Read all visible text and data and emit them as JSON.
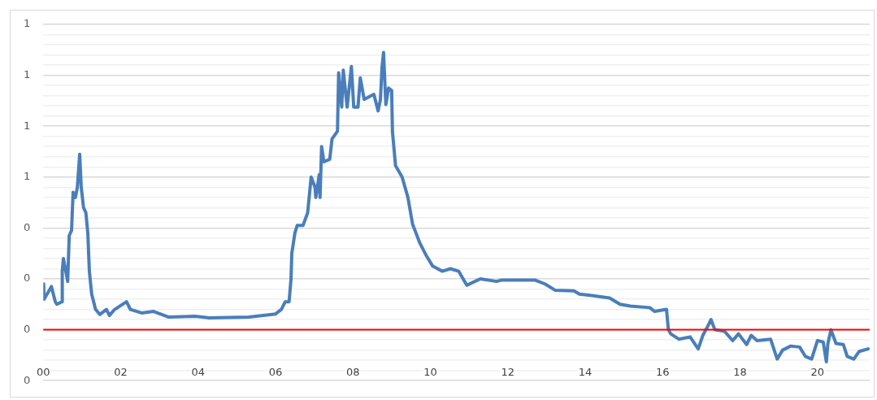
{
  "chart_data": {
    "type": "line",
    "grid": "y",
    "marker": "none",
    "line_style": "solid",
    "x": [
      0.01,
      0.02,
      0.21,
      0.31,
      0.35,
      0.48,
      0.49,
      0.52,
      0.63,
      0.67,
      0.73,
      0.77,
      0.83,
      0.88,
      0.94,
      0.98,
      1.04,
      1.1,
      1.15,
      1.19,
      1.25,
      1.35,
      1.46,
      1.63,
      1.71,
      1.83,
      2.15,
      2.25,
      2.54,
      2.85,
      3.23,
      3.92,
      4.27,
      5.31,
      6.0,
      6.15,
      6.25,
      6.35,
      6.4,
      6.42,
      6.5,
      6.56,
      6.71,
      6.83,
      6.92,
      7.02,
      7.04,
      7.13,
      7.15,
      7.19,
      7.25,
      7.4,
      7.46,
      7.6,
      7.63,
      7.71,
      7.75,
      7.85,
      7.96,
      8.02,
      8.13,
      8.19,
      8.29,
      8.54,
      8.65,
      8.71,
      8.75,
      8.79,
      8.85,
      8.92,
      9.0,
      9.02,
      9.1,
      9.27,
      9.42,
      9.54,
      9.73,
      9.9,
      10.06,
      10.31,
      10.52,
      10.73,
      10.94,
      11.29,
      11.71,
      11.83,
      12.71,
      12.96,
      13.23,
      13.71,
      13.85,
      14.13,
      14.63,
      14.9,
      15.17,
      15.67,
      15.79,
      16.1,
      16.15,
      16.21,
      16.42,
      16.71,
      16.92,
      17.04,
      17.15,
      17.25,
      17.35,
      17.6,
      17.81,
      17.96,
      18.17,
      18.29,
      18.44,
      18.79,
      18.96,
      19.1,
      19.31,
      19.54,
      19.69,
      19.85,
      20.0,
      20.15,
      20.23,
      20.27,
      20.35,
      20.48,
      20.67,
      20.77,
      20.94,
      21.08,
      21.31
    ],
    "series": [
      {
        "color": "#4a7ebb",
        "values": [
          0.18,
          0.12,
          0.17,
          0.11,
          0.1,
          0.11,
          0.23,
          0.28,
          0.19,
          0.37,
          0.39,
          0.54,
          0.52,
          0.56,
          0.69,
          0.56,
          0.48,
          0.46,
          0.38,
          0.23,
          0.14,
          0.08,
          0.06,
          0.08,
          0.056,
          0.078,
          0.11,
          0.08,
          0.066,
          0.072,
          0.05,
          0.053,
          0.047,
          0.05,
          0.062,
          0.08,
          0.11,
          0.11,
          0.2,
          0.3,
          0.38,
          0.41,
          0.41,
          0.46,
          0.6,
          0.56,
          0.52,
          0.61,
          0.52,
          0.72,
          0.66,
          0.67,
          0.75,
          0.78,
          1.01,
          0.875,
          1.02,
          0.875,
          1.035,
          0.875,
          0.875,
          0.99,
          0.905,
          0.925,
          0.86,
          0.905,
          1.03,
          1.09,
          0.885,
          0.95,
          0.94,
          0.78,
          0.645,
          0.6,
          0.52,
          0.415,
          0.34,
          0.29,
          0.25,
          0.23,
          0.24,
          0.23,
          0.175,
          0.2,
          0.19,
          0.195,
          0.195,
          0.18,
          0.155,
          0.153,
          0.14,
          0.135,
          0.125,
          0.1,
          0.093,
          0.087,
          0.072,
          0.08,
          0.0,
          -0.016,
          -0.037,
          -0.028,
          -0.075,
          -0.022,
          0.009,
          0.04,
          0.0,
          -0.006,
          -0.043,
          -0.016,
          -0.058,
          -0.022,
          -0.043,
          -0.037,
          -0.115,
          -0.08,
          -0.064,
          -0.068,
          -0.105,
          -0.115,
          -0.043,
          -0.048,
          -0.126,
          -0.054,
          0.0,
          -0.054,
          -0.058,
          -0.105,
          -0.115,
          -0.085,
          -0.075
        ]
      }
    ],
    "ref_lines": [
      {
        "axis": "y",
        "value": 0,
        "color": "#ff0000"
      }
    ],
    "xlim": [
      0,
      21.35
    ],
    "xticks": [
      {
        "value": 0,
        "label": "00"
      },
      {
        "value": 2,
        "label": "02"
      },
      {
        "value": 4,
        "label": "04"
      },
      {
        "value": 6,
        "label": "06"
      },
      {
        "value": 8,
        "label": "08"
      },
      {
        "value": 10,
        "label": "10"
      },
      {
        "value": 12,
        "label": "12"
      },
      {
        "value": 14,
        "label": "14"
      },
      {
        "value": 16,
        "label": "16"
      },
      {
        "value": 18,
        "label": "18"
      },
      {
        "value": 20,
        "label": "20"
      }
    ],
    "ylim": [
      -0.2,
      1.2
    ],
    "yticks": [
      {
        "value": -0.2,
        "label": "0"
      },
      {
        "value": -0.16,
        "label": null
      },
      {
        "value": -0.12,
        "label": null
      },
      {
        "value": -0.08,
        "label": null
      },
      {
        "value": -0.04,
        "label": null
      },
      {
        "value": 0,
        "label": "0"
      },
      {
        "value": 0.04,
        "label": null
      },
      {
        "value": 0.08,
        "label": null
      },
      {
        "value": 0.12,
        "label": null
      },
      {
        "value": 0.16,
        "label": null
      },
      {
        "value": 0.2,
        "label": "0"
      },
      {
        "value": 0.24,
        "label": null
      },
      {
        "value": 0.28,
        "label": null
      },
      {
        "value": 0.32,
        "label": null
      },
      {
        "value": 0.36,
        "label": null
      },
      {
        "value": 0.4,
        "label": "0"
      },
      {
        "value": 0.44,
        "label": null
      },
      {
        "value": 0.48,
        "label": null
      },
      {
        "value": 0.52,
        "label": null
      },
      {
        "value": 0.56,
        "label": null
      },
      {
        "value": 0.6,
        "label": "1"
      },
      {
        "value": 0.64,
        "label": null
      },
      {
        "value": 0.68,
        "label": null
      },
      {
        "value": 0.72,
        "label": null
      },
      {
        "value": 0.76,
        "label": null
      },
      {
        "value": 0.8,
        "label": "1"
      },
      {
        "value": 0.84,
        "label": null
      },
      {
        "value": 0.88,
        "label": null
      },
      {
        "value": 0.92,
        "label": null
      },
      {
        "value": 0.96,
        "label": null
      },
      {
        "value": 1.0,
        "label": "1"
      },
      {
        "value": 1.04,
        "label": null
      },
      {
        "value": 1.08,
        "label": null
      },
      {
        "value": 1.12,
        "label": null
      },
      {
        "value": 1.16,
        "label": null
      },
      {
        "value": 1.2,
        "label": "1"
      }
    ]
  }
}
